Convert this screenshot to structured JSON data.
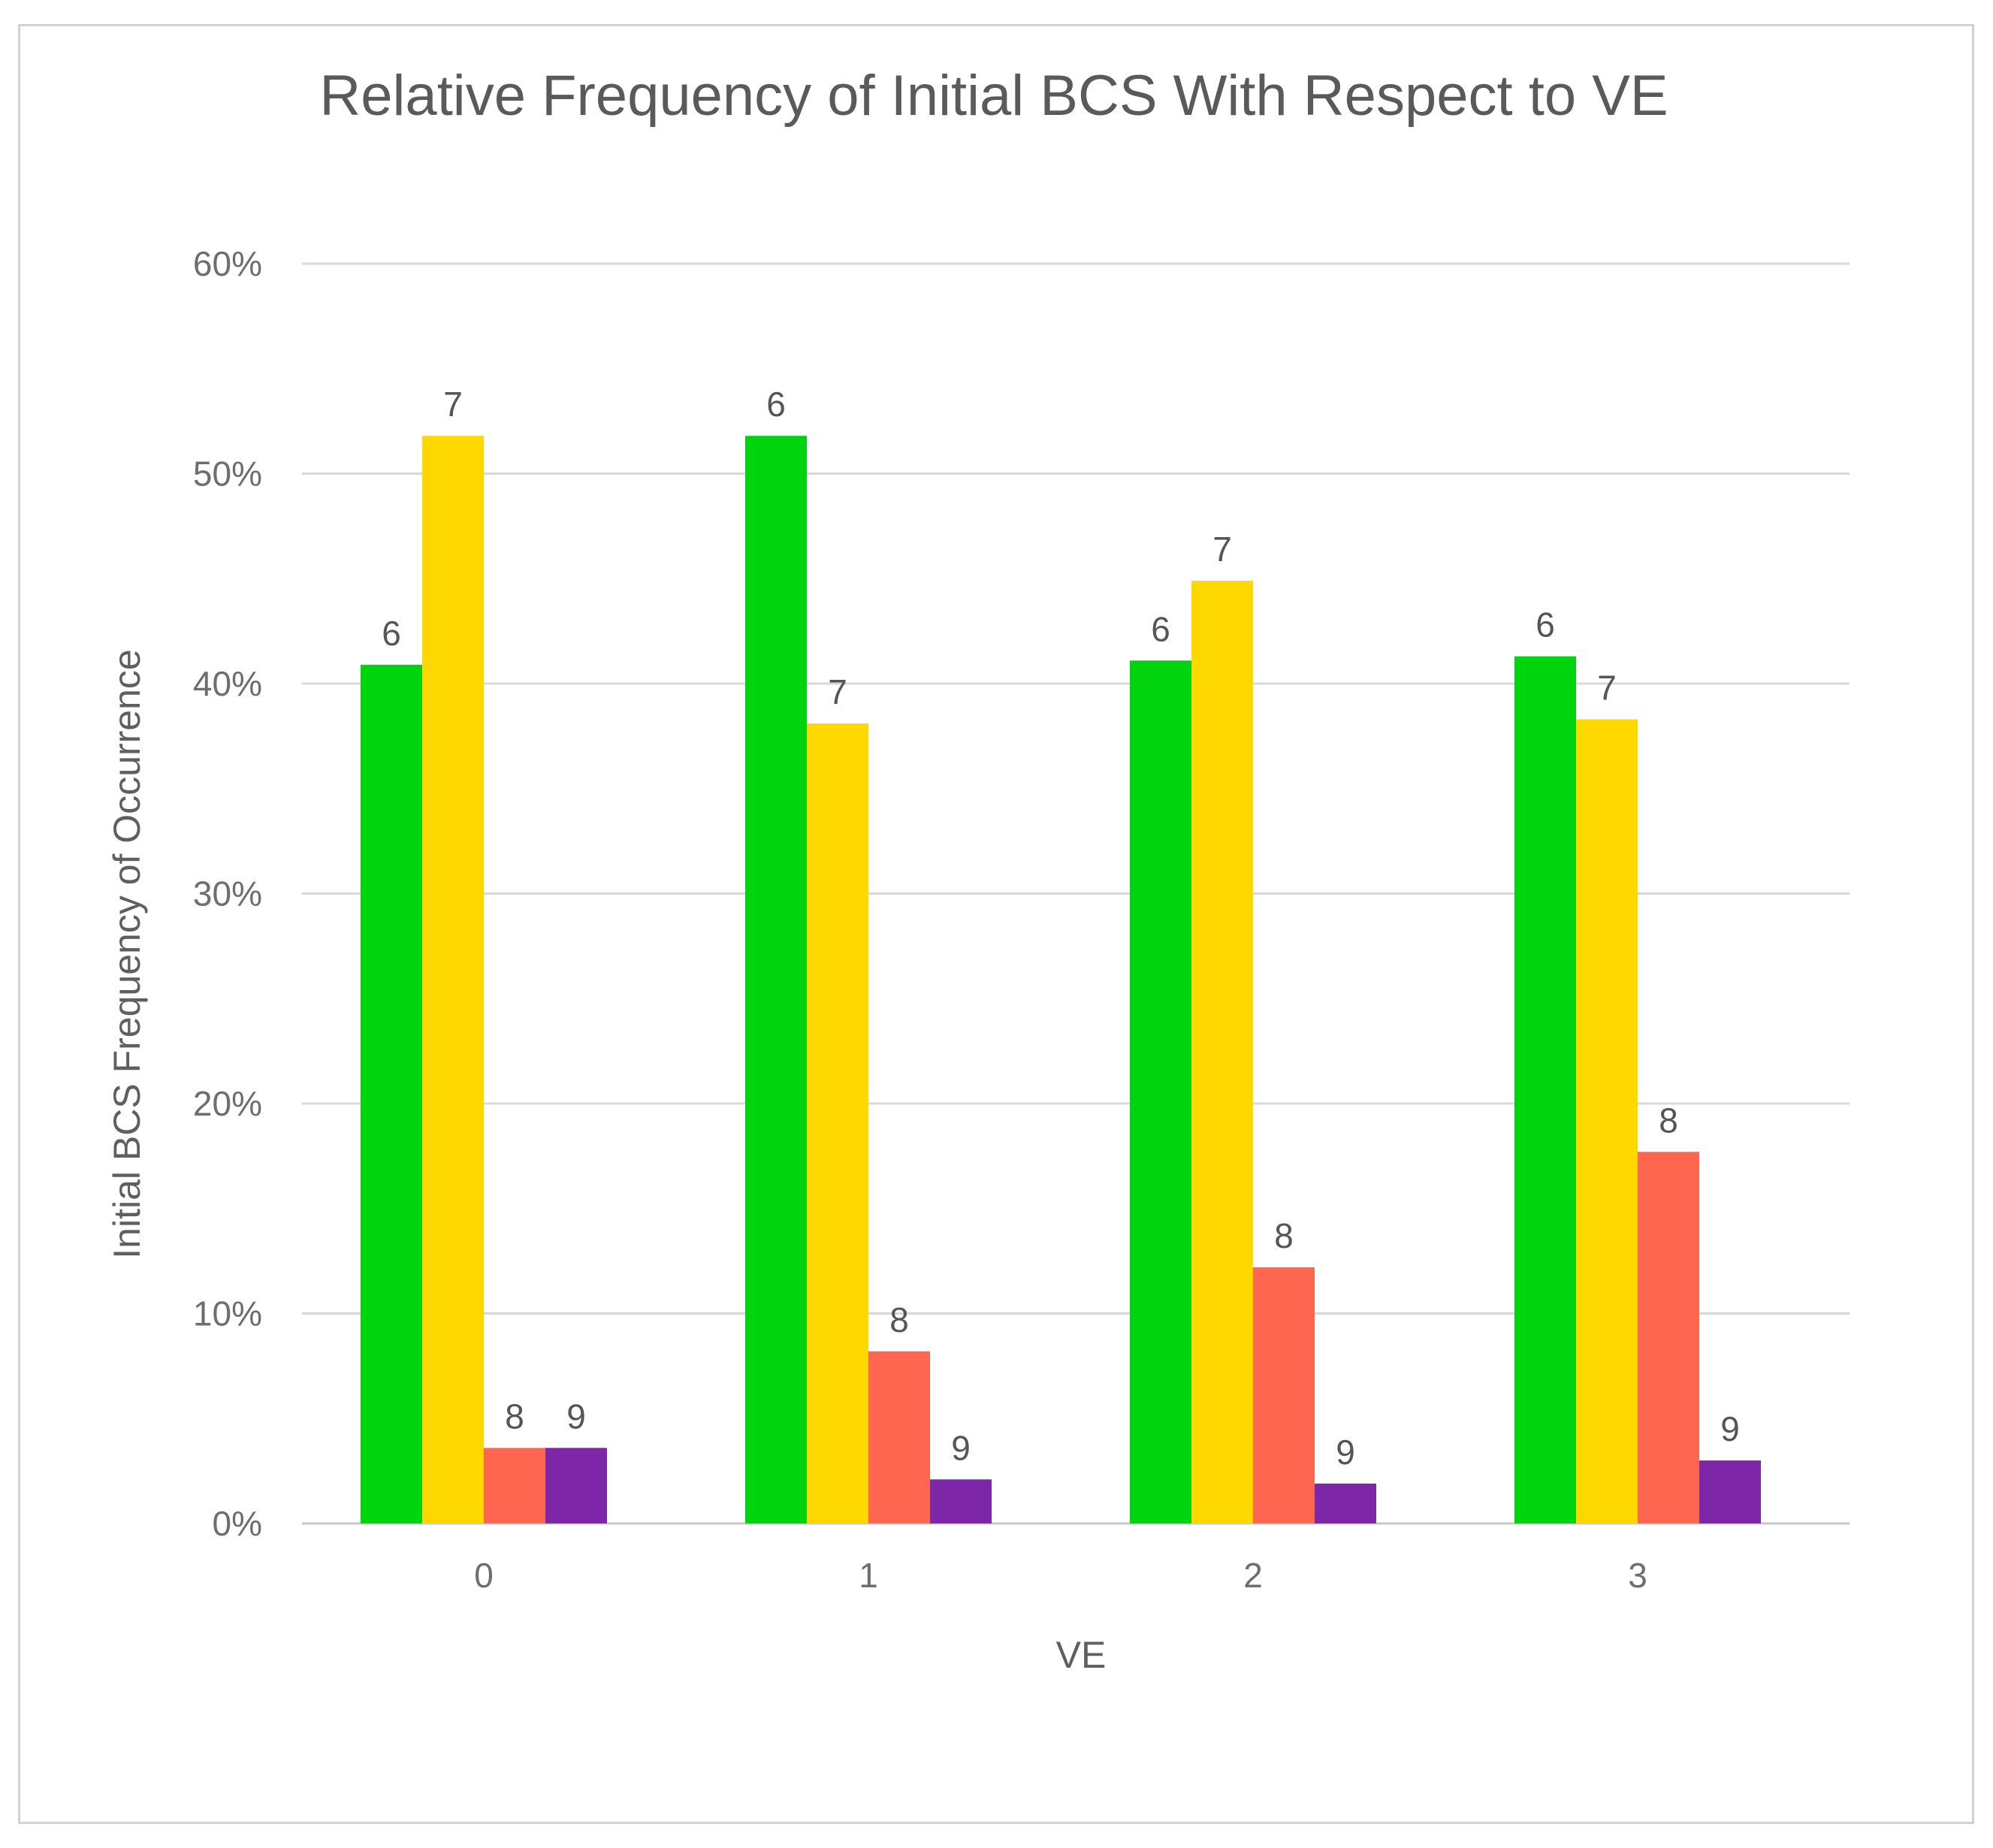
{
  "chart_data": {
    "type": "bar",
    "title": "Relative Frequency of Initial BCS With Respect to VE",
    "xlabel": "VE",
    "ylabel": "Initial BCS Frequency of Occurrence",
    "categories": [
      "0",
      "1",
      "2",
      "3"
    ],
    "ylim": [
      0,
      60
    ],
    "yticks": [
      0,
      10,
      20,
      30,
      40,
      50,
      60
    ],
    "ytick_labels": [
      "0%",
      "10%",
      "20%",
      "30%",
      "40%",
      "50%",
      "60%"
    ],
    "grid": true,
    "legend": "none",
    "series": [
      {
        "name": "6",
        "color": "#00d40f",
        "values": [
          40.9,
          51.8,
          41.1,
          41.3
        ],
        "labels": [
          "6",
          "6",
          "6",
          "6"
        ]
      },
      {
        "name": "7",
        "color": "#ffd800",
        "values": [
          51.8,
          38.1,
          44.9,
          38.3
        ],
        "labels": [
          "7",
          "7",
          "7",
          "7"
        ]
      },
      {
        "name": "8",
        "color": "#ff6650",
        "values": [
          3.6,
          8.2,
          12.2,
          17.7
        ],
        "labels": [
          "8",
          "8",
          "8",
          "8"
        ]
      },
      {
        "name": "9",
        "color": "#7d26a8",
        "values": [
          3.6,
          2.1,
          1.9,
          3.0
        ],
        "labels": [
          "9",
          "9",
          "9",
          "9"
        ]
      }
    ]
  }
}
